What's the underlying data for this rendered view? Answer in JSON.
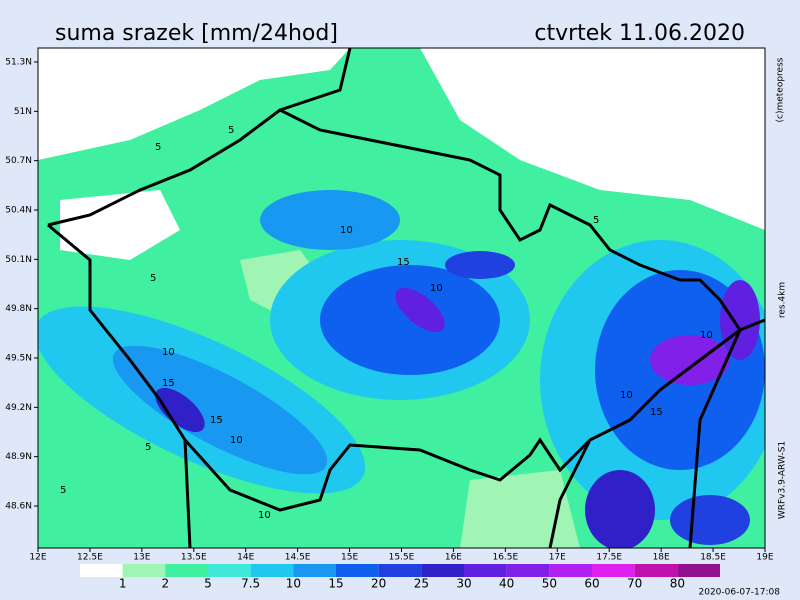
{
  "header": {
    "title": "suma srazek [mm/24hod]",
    "date": "ctvrtek 11.06.2020"
  },
  "map": {
    "lat_labels": [
      "51.3N",
      "51N",
      "50.7N",
      "50.4N",
      "50.1N",
      "49.8N",
      "49.5N",
      "49.2N",
      "48.9N",
      "48.6N"
    ],
    "lon_labels": [
      "12E",
      "12.5E",
      "13E",
      "13.5E",
      "14E",
      "14.5E",
      "15E",
      "15.5E",
      "16E",
      "16.5E",
      "17E",
      "17.5E",
      "18E",
      "18.5E",
      "19E"
    ],
    "contour_labels": [
      "5",
      "5",
      "5",
      "10",
      "15",
      "15",
      "10",
      "5",
      "10",
      "15",
      "10",
      "5",
      "10",
      "15",
      "10",
      "5",
      "10"
    ]
  },
  "legend": {
    "labels": [
      1,
      2,
      5,
      7.5,
      10,
      15,
      20,
      25,
      30,
      40,
      50,
      60,
      70,
      80
    ],
    "colors": [
      "#ffffff",
      "#a0f5b4",
      "#40f0a0",
      "#40e8d8",
      "#20c8f0",
      "#1898f0",
      "#1060f0",
      "#2040e0",
      "#3020c8",
      "#6020e0",
      "#8020e8",
      "#b020f0",
      "#e020f0",
      "#c010b0",
      "#901090"
    ]
  },
  "credits": {
    "copyright": "(c)meteopress",
    "resolution": "res.4km",
    "model": "WRFv3.9-ARW-S1",
    "timestamp": "2020-06-07-17:08"
  }
}
